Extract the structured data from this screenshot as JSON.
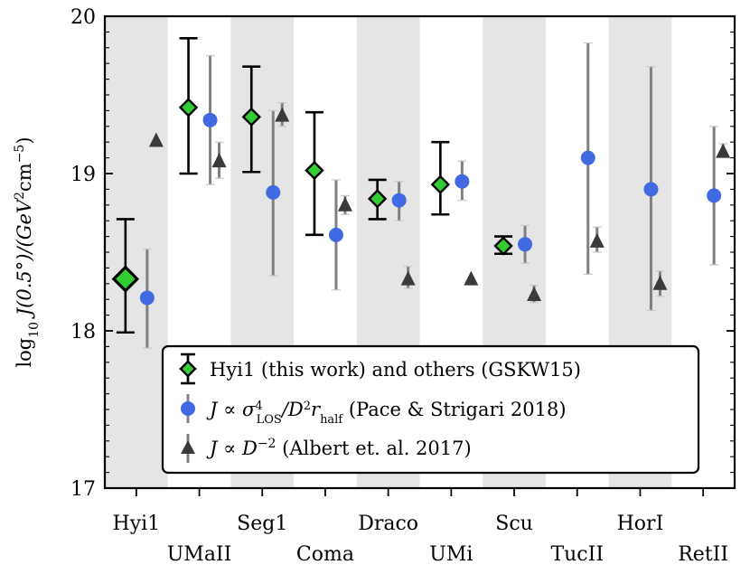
{
  "chart_data": {
    "type": "scatter",
    "title": "",
    "ylabel": "log10 J(0.5°)/(GeV²cm⁻⁵)",
    "ylabel_parts": {
      "prefix": "log",
      "sub": "10",
      "main": " J(0.5°)/(GeV",
      "sq": "2",
      "cm": "cm",
      "exp": "−5",
      "close": ")"
    },
    "xlabel": "",
    "ylim": [
      17,
      20
    ],
    "yticks": [
      17,
      18,
      19,
      20
    ],
    "ytick_labels": [
      "17",
      "18",
      "19",
      "20"
    ],
    "categories": [
      "Hyi1",
      "UMaII",
      "Seg1",
      "Coma",
      "Draco",
      "UMi",
      "Scu",
      "TucII",
      "HorI",
      "RetII"
    ],
    "shaded_categories": [
      "Hyi1",
      "Seg1",
      "Draco",
      "Scu",
      "HorI"
    ],
    "series": [
      {
        "name": "Hyi1 (this work) and others (GSKW15)",
        "marker": "diamond",
        "color": "#33cc33",
        "points": [
          {
            "category": "Hyi1",
            "y": 18.33,
            "lo": 17.99,
            "hi": 18.71
          },
          {
            "category": "UMaII",
            "y": 19.42,
            "lo": 19.0,
            "hi": 19.86
          },
          {
            "category": "Seg1",
            "y": 19.36,
            "lo": 19.01,
            "hi": 19.68
          },
          {
            "category": "Coma",
            "y": 19.02,
            "lo": 18.61,
            "hi": 19.39
          },
          {
            "category": "Draco",
            "y": 18.84,
            "lo": 18.71,
            "hi": 18.96
          },
          {
            "category": "UMi",
            "y": 18.93,
            "lo": 18.74,
            "hi": 19.2
          },
          {
            "category": "Scu",
            "y": 18.54,
            "lo": 18.49,
            "hi": 18.6
          }
        ]
      },
      {
        "name": "J ∝ σ⁴LOS/D²rhalf (Pace & Strigari 2018)",
        "marker": "circle",
        "color": "#4169e1",
        "points": [
          {
            "category": "Hyi1",
            "y": 18.21,
            "lo": 17.89,
            "hi": 18.52
          },
          {
            "category": "UMaII",
            "y": 19.34,
            "lo": 18.93,
            "hi": 19.75
          },
          {
            "category": "Seg1",
            "y": 18.88,
            "lo": 18.35,
            "hi": 19.4
          },
          {
            "category": "Coma",
            "y": 18.61,
            "lo": 18.26,
            "hi": 18.96
          },
          {
            "category": "Draco",
            "y": 18.83,
            "lo": 18.7,
            "hi": 18.95
          },
          {
            "category": "UMi",
            "y": 18.95,
            "lo": 18.83,
            "hi": 19.08
          },
          {
            "category": "Scu",
            "y": 18.55,
            "lo": 18.43,
            "hi": 18.67
          },
          {
            "category": "TucII",
            "y": 19.1,
            "lo": 18.36,
            "hi": 19.83
          },
          {
            "category": "HorI",
            "y": 18.9,
            "lo": 18.13,
            "hi": 19.68
          },
          {
            "category": "RetII",
            "y": 18.86,
            "lo": 18.42,
            "hi": 19.3
          }
        ]
      },
      {
        "name": "J ∝ D⁻² (Albert et. al. 2017)",
        "marker": "triangle",
        "color": "#3a3a3a",
        "points": [
          {
            "category": "Hyi1",
            "y": 19.21,
            "lo": 19.21,
            "hi": 19.21
          },
          {
            "category": "UMaII",
            "y": 19.08,
            "lo": 18.97,
            "hi": 19.2
          },
          {
            "category": "Seg1",
            "y": 19.37,
            "lo": 19.3,
            "hi": 19.45
          },
          {
            "category": "Coma",
            "y": 18.8,
            "lo": 18.74,
            "hi": 18.86
          },
          {
            "category": "Draco",
            "y": 18.33,
            "lo": 18.27,
            "hi": 18.41
          },
          {
            "category": "UMi",
            "y": 18.33,
            "lo": 18.33,
            "hi": 18.33
          },
          {
            "category": "Scu",
            "y": 18.23,
            "lo": 18.18,
            "hi": 18.29
          },
          {
            "category": "TucII",
            "y": 18.57,
            "lo": 18.5,
            "hi": 18.66
          },
          {
            "category": "HorI",
            "y": 18.3,
            "lo": 18.22,
            "hi": 18.38
          },
          {
            "category": "RetII",
            "y": 19.14,
            "lo": 19.12,
            "hi": 19.19
          }
        ]
      }
    ],
    "legend": {
      "position": "lower-right",
      "entries": [
        {
          "prefix": "Hyi1 (this work) and others (GSKW15)"
        },
        {
          "prefix": "J ∝ σ",
          "sup": "4",
          "sub": "LOS",
          "mid": "/D",
          "sup2": "2",
          "mid2": "r",
          "sub2": "half",
          "suffix": " (Pace & Strigari 2018)"
        },
        {
          "prefix": "J ∝ D",
          "sup": "−2",
          "suffix": " (Albert et. al. 2017)"
        }
      ]
    }
  }
}
